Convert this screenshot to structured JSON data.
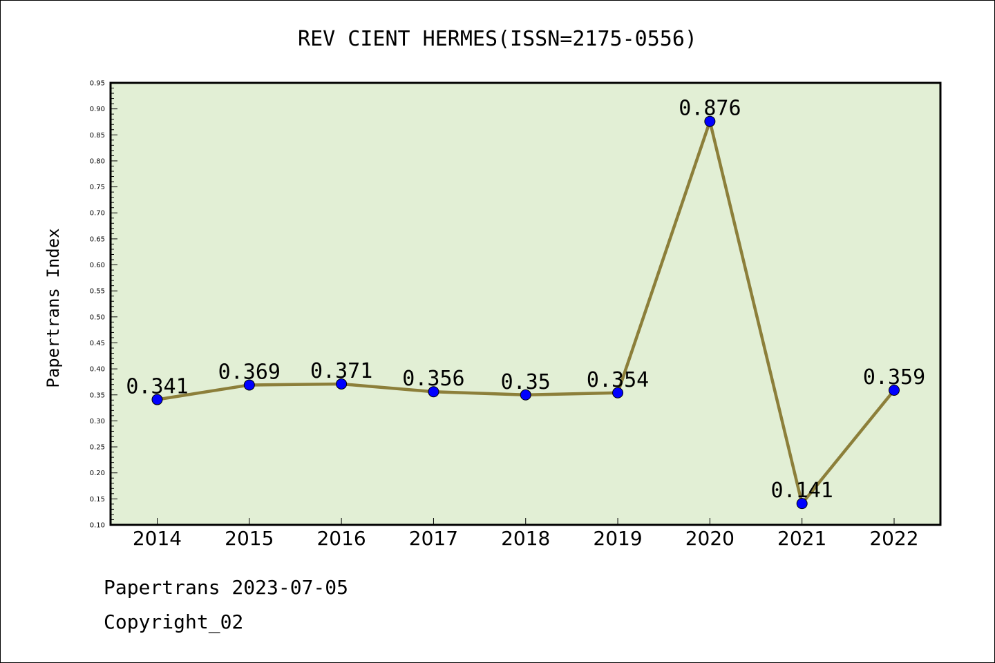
{
  "chart_data": {
    "type": "line",
    "title": "REV CIENT HERMES(ISSN=2175-0556)",
    "xlabel": "",
    "ylabel": "Papertrans Index",
    "categories": [
      "2014",
      "2015",
      "2016",
      "2017",
      "2018",
      "2019",
      "2020",
      "2021",
      "2022"
    ],
    "series": [
      {
        "values": [
          0.341,
          0.369,
          0.371,
          0.356,
          0.35,
          0.354,
          0.876,
          0.141,
          0.359
        ]
      }
    ],
    "data_labels": [
      "0.341",
      "0.369",
      "0.371",
      "0.356",
      "0.35",
      "0.354",
      "0.876",
      "0.141",
      "0.359"
    ],
    "ylim": [
      0.1,
      0.95
    ],
    "yticks": [
      "0.10",
      "0.15",
      "0.20",
      "0.25",
      "0.30",
      "0.35",
      "0.40",
      "0.45",
      "0.50",
      "0.55",
      "0.60",
      "0.65",
      "0.70",
      "0.75",
      "0.80",
      "0.85",
      "0.90",
      "0.95"
    ],
    "grid": false,
    "legend": "none",
    "colors": {
      "plot_background": "#e2efd5",
      "line": "#8c7f3a",
      "marker": "#0000ff"
    }
  },
  "footer": {
    "source": "Papertrans 2023-07-05",
    "copyright": "Copyright_02"
  }
}
